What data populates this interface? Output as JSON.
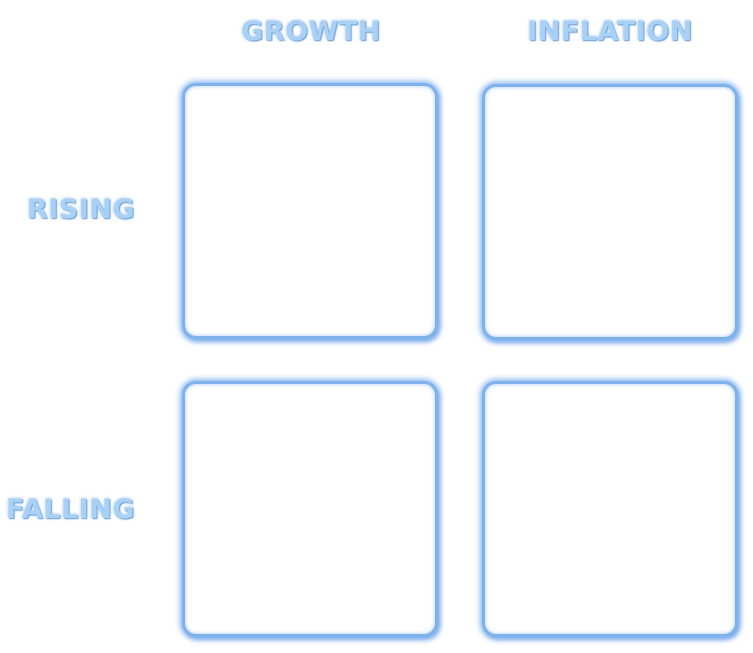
{
  "columns": [
    "GROWTH",
    "INFLATION"
  ],
  "rows": [
    "RISING",
    "FALLING"
  ]
}
